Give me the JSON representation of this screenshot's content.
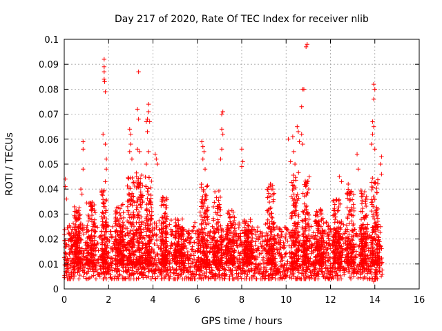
{
  "chart_data": {
    "type": "scatter",
    "title": "Day 217 of 2020, Rate Of TEC Index for receiver nlib",
    "xlabel": "GPS time / hours",
    "ylabel": "ROTI / TECUs",
    "xlim": [
      0,
      16
    ],
    "ylim": [
      0,
      0.1
    ],
    "x_ticks": [
      0,
      2,
      4,
      6,
      8,
      10,
      12,
      14,
      16
    ],
    "y_ticks": [
      0,
      0.01,
      0.02,
      0.03,
      0.04,
      0.05,
      0.06,
      0.07,
      0.08,
      0.09,
      0.1
    ],
    "x_tick_labels": [
      "0",
      "2",
      "4",
      "6",
      "8",
      "10",
      "12",
      "14",
      "16"
    ],
    "y_tick_labels": [
      "0",
      "0.01",
      "0.02",
      "0.03",
      "0.04",
      "0.05",
      "0.06",
      "0.07",
      "0.08",
      "0.09",
      "0.1"
    ],
    "grid": true,
    "marker": "+",
    "color": "#ff0000",
    "series": [
      {
        "name": "ROTI",
        "x_range": [
          0.0,
          14.35
        ],
        "baseline_range": [
          0.005,
          0.025
        ],
        "highlights": [
          {
            "x": 0.05,
            "y": 0.044
          },
          {
            "x": 0.05,
            "y": 0.041
          },
          {
            "x": 0.1,
            "y": 0.036
          },
          {
            "x": 0.75,
            "y": 0.04
          },
          {
            "x": 0.8,
            "y": 0.038
          },
          {
            "x": 0.85,
            "y": 0.056
          },
          {
            "x": 0.85,
            "y": 0.059
          },
          {
            "x": 0.85,
            "y": 0.048
          },
          {
            "x": 1.8,
            "y": 0.092
          },
          {
            "x": 1.8,
            "y": 0.089
          },
          {
            "x": 1.8,
            "y": 0.087
          },
          {
            "x": 1.8,
            "y": 0.084
          },
          {
            "x": 1.82,
            "y": 0.083
          },
          {
            "x": 1.85,
            "y": 0.079
          },
          {
            "x": 1.75,
            "y": 0.062
          },
          {
            "x": 1.85,
            "y": 0.058
          },
          {
            "x": 1.9,
            "y": 0.052
          },
          {
            "x": 1.9,
            "y": 0.048
          },
          {
            "x": 1.85,
            "y": 0.043
          },
          {
            "x": 2.95,
            "y": 0.064
          },
          {
            "x": 3.0,
            "y": 0.062
          },
          {
            "x": 3.0,
            "y": 0.058
          },
          {
            "x": 2.95,
            "y": 0.055
          },
          {
            "x": 3.05,
            "y": 0.052
          },
          {
            "x": 3.35,
            "y": 0.087
          },
          {
            "x": 3.3,
            "y": 0.072
          },
          {
            "x": 3.35,
            "y": 0.068
          },
          {
            "x": 3.3,
            "y": 0.056
          },
          {
            "x": 3.4,
            "y": 0.055
          },
          {
            "x": 3.7,
            "y": 0.067
          },
          {
            "x": 3.75,
            "y": 0.068
          },
          {
            "x": 3.8,
            "y": 0.074
          },
          {
            "x": 3.8,
            "y": 0.071
          },
          {
            "x": 3.85,
            "y": 0.067
          },
          {
            "x": 3.75,
            "y": 0.063
          },
          {
            "x": 3.8,
            "y": 0.055
          },
          {
            "x": 3.7,
            "y": 0.05
          },
          {
            "x": 4.1,
            "y": 0.054
          },
          {
            "x": 4.15,
            "y": 0.052
          },
          {
            "x": 4.2,
            "y": 0.05
          },
          {
            "x": 6.2,
            "y": 0.059
          },
          {
            "x": 6.25,
            "y": 0.057
          },
          {
            "x": 6.3,
            "y": 0.055
          },
          {
            "x": 6.25,
            "y": 0.052
          },
          {
            "x": 6.35,
            "y": 0.048
          },
          {
            "x": 7.1,
            "y": 0.07
          },
          {
            "x": 7.15,
            "y": 0.071
          },
          {
            "x": 7.1,
            "y": 0.064
          },
          {
            "x": 7.15,
            "y": 0.062
          },
          {
            "x": 7.1,
            "y": 0.056
          },
          {
            "x": 7.05,
            "y": 0.052
          },
          {
            "x": 8.0,
            "y": 0.056
          },
          {
            "x": 8.05,
            "y": 0.051
          },
          {
            "x": 8.0,
            "y": 0.049
          },
          {
            "x": 9.3,
            "y": 0.042
          },
          {
            "x": 9.4,
            "y": 0.04
          },
          {
            "x": 10.1,
            "y": 0.06
          },
          {
            "x": 10.2,
            "y": 0.051
          },
          {
            "x": 10.3,
            "y": 0.061
          },
          {
            "x": 10.35,
            "y": 0.055
          },
          {
            "x": 10.4,
            "y": 0.05
          },
          {
            "x": 10.5,
            "y": 0.065
          },
          {
            "x": 10.55,
            "y": 0.063
          },
          {
            "x": 10.6,
            "y": 0.059
          },
          {
            "x": 10.7,
            "y": 0.073
          },
          {
            "x": 10.75,
            "y": 0.08
          },
          {
            "x": 10.8,
            "y": 0.08
          },
          {
            "x": 10.7,
            "y": 0.062
          },
          {
            "x": 10.75,
            "y": 0.058
          },
          {
            "x": 10.9,
            "y": 0.097
          },
          {
            "x": 10.95,
            "y": 0.098
          },
          {
            "x": 13.95,
            "y": 0.082
          },
          {
            "x": 14.0,
            "y": 0.08
          },
          {
            "x": 13.95,
            "y": 0.076
          },
          {
            "x": 13.9,
            "y": 0.067
          },
          {
            "x": 13.95,
            "y": 0.065
          },
          {
            "x": 13.9,
            "y": 0.062
          },
          {
            "x": 13.85,
            "y": 0.058
          },
          {
            "x": 14.0,
            "y": 0.056
          },
          {
            "x": 13.2,
            "y": 0.054
          },
          {
            "x": 13.25,
            "y": 0.048
          },
          {
            "x": 14.3,
            "y": 0.053
          },
          {
            "x": 14.25,
            "y": 0.05
          },
          {
            "x": 14.3,
            "y": 0.046
          },
          {
            "x": 12.4,
            "y": 0.045
          },
          {
            "x": 12.5,
            "y": 0.043
          },
          {
            "x": 12.8,
            "y": 0.042
          },
          {
            "x": 5.5,
            "y": 0.004
          },
          {
            "x": 13.05,
            "y": 0.005
          },
          {
            "x": 13.95,
            "y": 0.003
          },
          {
            "x": 14.0,
            "y": 0.004
          }
        ],
        "bursts": [
          {
            "center": 0.6,
            "width": 0.3,
            "peak": 0.033
          },
          {
            "center": 1.2,
            "width": 0.4,
            "peak": 0.035
          },
          {
            "center": 1.8,
            "width": 0.25,
            "peak": 0.04
          },
          {
            "center": 2.5,
            "width": 0.4,
            "peak": 0.034
          },
          {
            "center": 3.0,
            "width": 0.35,
            "peak": 0.045
          },
          {
            "center": 3.4,
            "width": 0.3,
            "peak": 0.047
          },
          {
            "center": 3.8,
            "width": 0.3,
            "peak": 0.045
          },
          {
            "center": 4.5,
            "width": 0.3,
            "peak": 0.038
          },
          {
            "center": 5.2,
            "width": 0.4,
            "peak": 0.028
          },
          {
            "center": 6.3,
            "width": 0.35,
            "peak": 0.042
          },
          {
            "center": 6.9,
            "width": 0.4,
            "peak": 0.04
          },
          {
            "center": 7.5,
            "width": 0.4,
            "peak": 0.032
          },
          {
            "center": 8.3,
            "width": 0.4,
            "peak": 0.028
          },
          {
            "center": 9.3,
            "width": 0.35,
            "peak": 0.042
          },
          {
            "center": 10.4,
            "width": 0.35,
            "peak": 0.047
          },
          {
            "center": 10.9,
            "width": 0.3,
            "peak": 0.045
          },
          {
            "center": 11.5,
            "width": 0.4,
            "peak": 0.032
          },
          {
            "center": 12.3,
            "width": 0.4,
            "peak": 0.036
          },
          {
            "center": 12.9,
            "width": 0.35,
            "peak": 0.04
          },
          {
            "center": 13.5,
            "width": 0.3,
            "peak": 0.04
          },
          {
            "center": 14.0,
            "width": 0.3,
            "peak": 0.045
          }
        ]
      }
    ]
  }
}
